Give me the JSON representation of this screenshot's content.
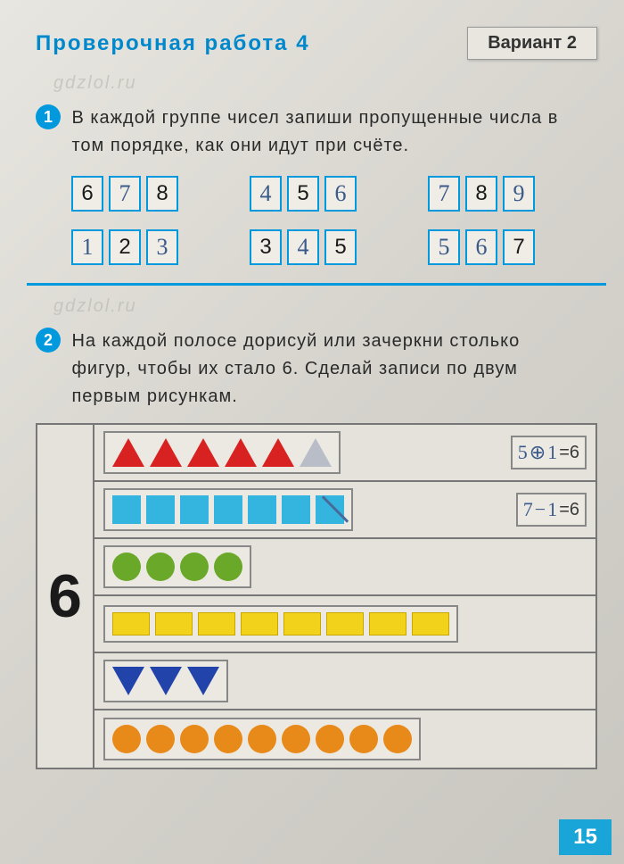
{
  "header": {
    "title": "Проверочная работа 4",
    "variant": "Вариант 2",
    "watermark1": "gdzlol.ru",
    "watermark2": "gdzlol.ru"
  },
  "task1": {
    "num": "1",
    "text": "В каждой группе чисел запиши пропущенные числа в том порядке, как они идут при счёте.",
    "rows": [
      [
        [
          {
            "v": "6",
            "t": "printed"
          },
          {
            "v": "7",
            "t": "hand"
          },
          {
            "v": "8",
            "t": "printed"
          }
        ],
        [
          {
            "v": "4",
            "t": "hand"
          },
          {
            "v": "5",
            "t": "printed"
          },
          {
            "v": "6",
            "t": "hand"
          }
        ],
        [
          {
            "v": "7",
            "t": "hand"
          },
          {
            "v": "8",
            "t": "printed"
          },
          {
            "v": "9",
            "t": "hand"
          }
        ]
      ],
      [
        [
          {
            "v": "1",
            "t": "hand"
          },
          {
            "v": "2",
            "t": "printed"
          },
          {
            "v": "3",
            "t": "hand"
          }
        ],
        [
          {
            "v": "3",
            "t": "printed"
          },
          {
            "v": "4",
            "t": "hand"
          },
          {
            "v": "5",
            "t": "printed"
          }
        ],
        [
          {
            "v": "5",
            "t": "hand"
          },
          {
            "v": "6",
            "t": "hand"
          },
          {
            "v": "7",
            "t": "printed"
          }
        ]
      ]
    ]
  },
  "task2": {
    "num": "2",
    "text": "На каждой полосе дорисуй или зачеркни столько фигур, чтобы их стало 6. Сделай записи по двум первым рисункам.",
    "bigsix": "6",
    "rows": [
      {
        "shapes": [
          {
            "k": "tri-up"
          },
          {
            "k": "tri-up"
          },
          {
            "k": "tri-up"
          },
          {
            "k": "tri-up"
          },
          {
            "k": "tri-up"
          },
          {
            "k": "tri-up outline"
          }
        ],
        "eq": {
          "a": "5",
          "op": "⊕",
          "b": "1",
          "r": "=6"
        }
      },
      {
        "shapes": [
          {
            "k": "sq"
          },
          {
            "k": "sq"
          },
          {
            "k": "sq"
          },
          {
            "k": "sq"
          },
          {
            "k": "sq"
          },
          {
            "k": "sq"
          },
          {
            "k": "sq crossed"
          }
        ],
        "eq": {
          "a": "7",
          "op": "−",
          "b": "1",
          "r": "=6"
        }
      },
      {
        "shapes": [
          {
            "k": "circ green"
          },
          {
            "k": "circ green"
          },
          {
            "k": "circ green"
          },
          {
            "k": "circ green"
          }
        ]
      },
      {
        "shapes": [
          {
            "k": "rect-y"
          },
          {
            "k": "rect-y"
          },
          {
            "k": "rect-y"
          },
          {
            "k": "rect-y"
          },
          {
            "k": "rect-y"
          },
          {
            "k": "rect-y"
          },
          {
            "k": "rect-y"
          },
          {
            "k": "rect-y"
          }
        ]
      },
      {
        "shapes": [
          {
            "k": "tri-dn"
          },
          {
            "k": "tri-dn"
          },
          {
            "k": "tri-dn"
          }
        ]
      },
      {
        "shapes": [
          {
            "k": "circ orange"
          },
          {
            "k": "circ orange"
          },
          {
            "k": "circ orange"
          },
          {
            "k": "circ orange"
          },
          {
            "k": "circ orange"
          },
          {
            "k": "circ orange"
          },
          {
            "k": "circ orange"
          },
          {
            "k": "circ orange"
          },
          {
            "k": "circ orange"
          }
        ]
      }
    ]
  },
  "pagenum": "15"
}
